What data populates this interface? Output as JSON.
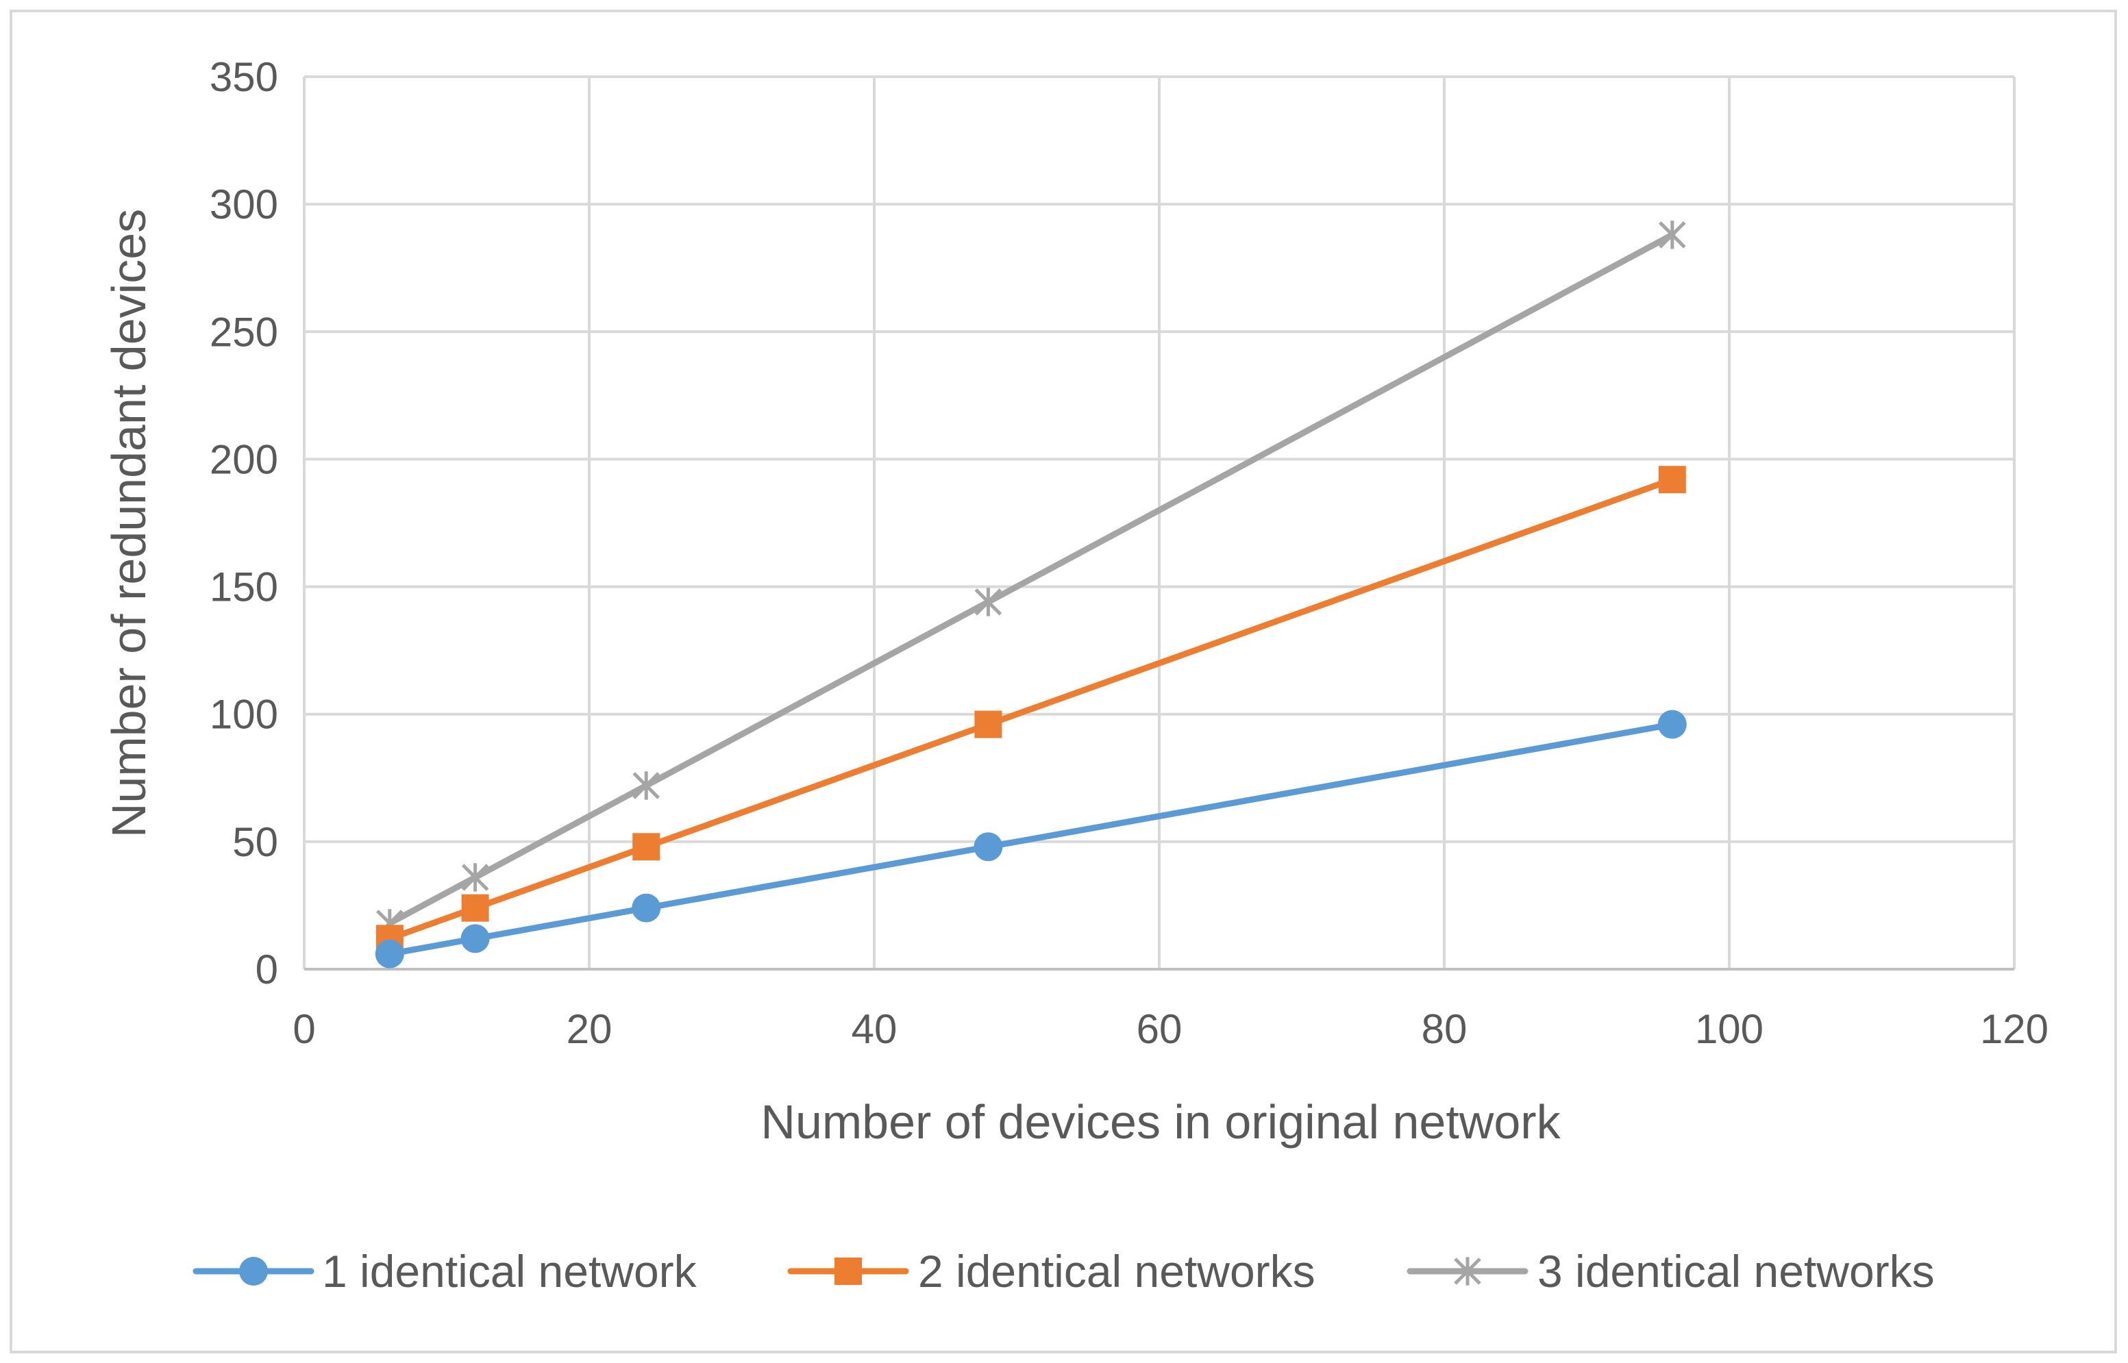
{
  "chart_data": {
    "type": "line",
    "title": "",
    "xlabel": "Number of devices in original network",
    "ylabel": "Number of redundant devices",
    "xlim": [
      0,
      120
    ],
    "ylim": [
      0,
      350
    ],
    "xticks": [
      0,
      20,
      40,
      60,
      80,
      100,
      120
    ],
    "yticks": [
      0,
      50,
      100,
      150,
      200,
      250,
      300,
      350
    ],
    "grid": true,
    "legend_position": "bottom",
    "x": [
      6,
      12,
      24,
      48,
      96
    ],
    "series": [
      {
        "name": "1 identical network",
        "values": [
          6,
          12,
          24,
          48,
          96
        ],
        "color": "#5b9bd5",
        "marker": "circle"
      },
      {
        "name": "2 identical networks",
        "values": [
          12,
          24,
          48,
          96,
          192
        ],
        "color": "#ed7d31",
        "marker": "square"
      },
      {
        "name": "3 identical networks",
        "values": [
          18,
          36,
          72,
          144,
          288
        ],
        "color": "#a5a5a5",
        "marker": "star"
      }
    ]
  }
}
